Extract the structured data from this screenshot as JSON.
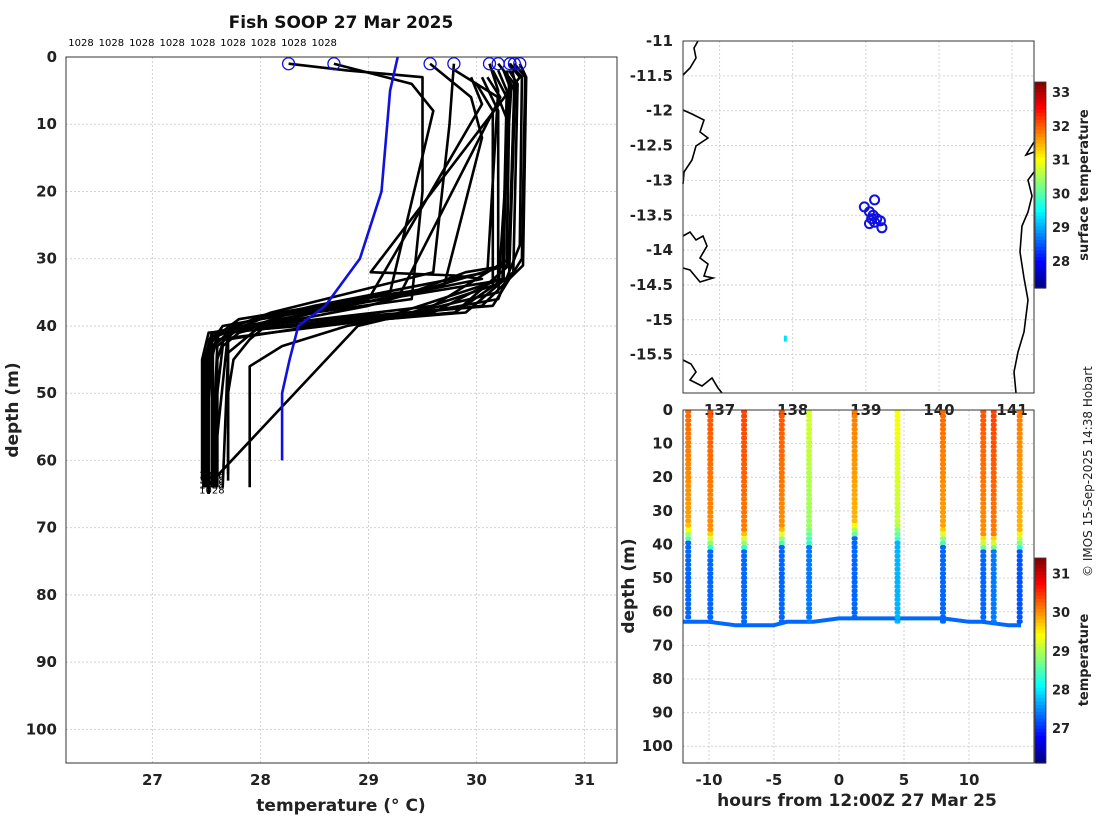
{
  "figure": {
    "title": "Fish SOOP 27 Mar 2025",
    "credit": "© IMOS 15-Sep-2025 14:38 Hobart"
  },
  "chart_data": [
    {
      "name": "temperature-profiles",
      "type": "line",
      "title": "Fish SOOP 27 Mar 2025",
      "xlabel": "temperature (° C)",
      "ylabel": "depth (m)",
      "xlim": [
        26.2,
        31.3
      ],
      "ylim": [
        105,
        0
      ],
      "xticks": [
        27,
        28,
        29,
        30,
        31
      ],
      "yticks": [
        0,
        10,
        20,
        30,
        40,
        50,
        60,
        70,
        80,
        90,
        100
      ],
      "grid": true,
      "top_labels": [
        "1028",
        "1028",
        "1028",
        "1028",
        "1028",
        "1028",
        "1028",
        "1028",
        "1028"
      ],
      "bottom_labels": [
        "1028",
        "1028",
        "1028",
        "1028"
      ],
      "climatology": {
        "name": "climatology",
        "color": "#1010e0",
        "temp": [
          29.27,
          29.2,
          29.12,
          28.92,
          28.6,
          28.35,
          28.27,
          28.2,
          28.2
        ],
        "depth": [
          0,
          5,
          20,
          30,
          37,
          40,
          45,
          50,
          60
        ]
      },
      "start_temps": [
        28.26,
        28.68,
        29.57,
        29.79,
        30.12,
        30.2,
        30.31,
        30.35,
        30.4
      ],
      "profiles": [
        {
          "temp": [
            28.26,
            28.8,
            29.5,
            29.5,
            29.4,
            28.5,
            27.8,
            27.65,
            27.6,
            27.6
          ],
          "depth": [
            1,
            2,
            3,
            20,
            36,
            38,
            41,
            43,
            50,
            64
          ]
        },
        {
          "temp": [
            28.68,
            29.4,
            29.6,
            29.2,
            28.3,
            27.75,
            27.6,
            27.58,
            27.58
          ],
          "depth": [
            1,
            4,
            8,
            35,
            38,
            41,
            43,
            50,
            64
          ]
        },
        {
          "temp": [
            29.57,
            29.95,
            30.05,
            29.7,
            28.2,
            27.9,
            27.75,
            27.7,
            27.7
          ],
          "depth": [
            1,
            6,
            12,
            34,
            38,
            42,
            45,
            50,
            63
          ]
        },
        {
          "temp": [
            29.79,
            29.75,
            29.6,
            28.1,
            27.6,
            27.55,
            27.55
          ],
          "depth": [
            1,
            10,
            32,
            38,
            41,
            45,
            64
          ]
        },
        {
          "temp": [
            30.12,
            30.2,
            30.1,
            28.5,
            27.7,
            27.6,
            27.6
          ],
          "depth": [
            1,
            5,
            32,
            37,
            40,
            45,
            64
          ]
        },
        {
          "temp": [
            30.2,
            30.35,
            30.3,
            29.6,
            28.0,
            27.7,
            27.65
          ],
          "depth": [
            1,
            4,
            30,
            37,
            40,
            44,
            64
          ]
        },
        {
          "temp": [
            30.31,
            30.42,
            30.4,
            30.2,
            28.8,
            28.2,
            27.9,
            27.9
          ],
          "depth": [
            1,
            3,
            28,
            36,
            40,
            43,
            46,
            64
          ]
        },
        {
          "temp": [
            30.35,
            30.45,
            30.42,
            30.15,
            27.8,
            27.55,
            27.55
          ],
          "depth": [
            1,
            3,
            30,
            37,
            40,
            43,
            64
          ]
        },
        {
          "temp": [
            30.4,
            30.46,
            30.43,
            30.05,
            27.7,
            27.5,
            27.5
          ],
          "depth": [
            1,
            3,
            31,
            37,
            41,
            44,
            64
          ]
        },
        {
          "temp": [
            30.3,
            30.38,
            30.34,
            29.9,
            27.6,
            27.5,
            27.5
          ],
          "depth": [
            2,
            4,
            32,
            38,
            41,
            44,
            64
          ]
        },
        {
          "temp": [
            30.15,
            30.28,
            30.25,
            29.8,
            27.55,
            27.48,
            27.48
          ],
          "depth": [
            2,
            6,
            33,
            38,
            41,
            45,
            64
          ]
        },
        {
          "temp": [
            30.05,
            30.2,
            30.2,
            29.6,
            27.52,
            27.46,
            27.46
          ],
          "depth": [
            3,
            8,
            33,
            38,
            41,
            45,
            63
          ]
        },
        {
          "temp": [
            30.25,
            30.35,
            30.3,
            29.8,
            28.5,
            27.7,
            27.7
          ],
          "depth": [
            2,
            5,
            31,
            38,
            40,
            42,
            62
          ]
        },
        {
          "temp": [
            30.0,
            30.15,
            30.15,
            29.4,
            27.58,
            27.5,
            27.5
          ],
          "depth": [
            4,
            8,
            34,
            38,
            41,
            45,
            64
          ]
        },
        {
          "temp": [
            30.2,
            30.28,
            30.24,
            29.1,
            27.6,
            27.52,
            27.52
          ],
          "depth": [
            2,
            5,
            33,
            39,
            42,
            46,
            65
          ]
        },
        {
          "temp": [
            30.1,
            30.22,
            29.3,
            27.8,
            27.55,
            27.55
          ],
          "depth": [
            3,
            6,
            35,
            39,
            42,
            64
          ]
        },
        {
          "temp": [
            30.33,
            30.36,
            30.3,
            28.0,
            27.52,
            27.5
          ],
          "depth": [
            2,
            4,
            33,
            39,
            42,
            64
          ]
        },
        {
          "temp": [
            29.95,
            30.05,
            29.0,
            27.65,
            27.52,
            27.52
          ],
          "depth": [
            3,
            7,
            36,
            40,
            43,
            65
          ]
        },
        {
          "temp": [
            30.28,
            30.3,
            30.28,
            29.9,
            29.4,
            27.62,
            27.56,
            27.56
          ],
          "depth": [
            2,
            4,
            31,
            32,
            35,
            41,
            44,
            64
          ]
        },
        {
          "temp": [
            30.25,
            30.32,
            30.2,
            28.9,
            27.5
          ],
          "depth": [
            2,
            5,
            35,
            40,
            64
          ]
        },
        {
          "temp": [
            29.8,
            30.2,
            30.3,
            30.28,
            29.0,
            27.7,
            27.55
          ],
          "depth": [
            2,
            6,
            10,
            31,
            37,
            41,
            64
          ]
        },
        {
          "temp": [
            30.3,
            30.4,
            29.02,
            29.8,
            30.05,
            27.55,
            27.48
          ],
          "depth": [
            1,
            3,
            32,
            32.5,
            33,
            41,
            64
          ]
        }
      ]
    },
    {
      "name": "location-map",
      "type": "scatter",
      "ylim": [
        -16.05,
        -11
      ],
      "yticks": [
        -11,
        -11.5,
        -12,
        -12.5,
        -13,
        -13.5,
        -14,
        -14.5,
        -15,
        -15.5
      ],
      "xticks": [
        137,
        138,
        139,
        140,
        141
      ],
      "xlim": [
        136.5,
        141.3
      ],
      "colorbar": {
        "label": "surface temperature",
        "min": 27.2,
        "max": 33.3,
        "ticks": [
          28,
          29,
          30,
          31,
          32,
          33
        ]
      },
      "points": [
        {
          "lon": 138.98,
          "lat": -13.38
        },
        {
          "lon": 139.05,
          "lat": -13.45
        },
        {
          "lon": 139.12,
          "lat": -13.28
        },
        {
          "lon": 139.1,
          "lat": -13.5
        },
        {
          "lon": 139.15,
          "lat": -13.55
        },
        {
          "lon": 139.2,
          "lat": -13.58
        },
        {
          "lon": 139.08,
          "lat": -13.55
        },
        {
          "lon": 139.05,
          "lat": -13.62
        },
        {
          "lon": 139.12,
          "lat": -13.6
        },
        {
          "lon": 139.22,
          "lat": -13.68
        }
      ],
      "marker": {
        "lon": 137.9,
        "lat": -15.27,
        "value": 29.3
      }
    },
    {
      "name": "depth-time-section",
      "type": "scatter",
      "xlabel": "hours from 12:00Z 27 Mar 25",
      "ylabel": "depth (m)",
      "xlim": [
        -12,
        15
      ],
      "ylim": [
        105,
        0
      ],
      "xticks": [
        -10,
        -5,
        0,
        5,
        10
      ],
      "yticks": [
        0,
        10,
        20,
        30,
        40,
        50,
        60,
        70,
        80,
        90,
        100
      ],
      "colorbar": {
        "label": "temperature",
        "min": 26.1,
        "max": 31.4,
        "ticks": [
          27,
          28,
          29,
          30,
          31
        ]
      },
      "casts": [
        {
          "hour": -11.6,
          "bottom": 62,
          "thermocline": 38,
          "surf": 30.2,
          "deep": 27.3
        },
        {
          "hour": -9.9,
          "bottom": 63,
          "thermocline": 40,
          "surf": 30.3,
          "deep": 27.3
        },
        {
          "hour": -7.3,
          "bottom": 64,
          "thermocline": 40,
          "surf": 30.4,
          "deep": 27.3
        },
        {
          "hour": -4.4,
          "bottom": 63,
          "thermocline": 39,
          "surf": 30.3,
          "deep": 27.3
        },
        {
          "hour": -2.3,
          "bottom": 63,
          "thermocline": 39,
          "surf": 29.2,
          "deep": 27.4
        },
        {
          "hour": 1.2,
          "bottom": 62,
          "thermocline": 37,
          "surf": 30.1,
          "deep": 27.3
        },
        {
          "hour": 4.5,
          "bottom": 63,
          "thermocline": 38,
          "surf": 29.4,
          "deep": 27.7
        },
        {
          "hour": 8.0,
          "bottom": 63,
          "thermocline": 39,
          "surf": 30.2,
          "deep": 27.3
        },
        {
          "hour": 11.1,
          "bottom": 63,
          "thermocline": 41,
          "surf": 30.3,
          "deep": 27.3
        },
        {
          "hour": 11.9,
          "bottom": 63,
          "thermocline": 41,
          "surf": 30.4,
          "deep": 27.4
        },
        {
          "hour": 13.9,
          "bottom": 64,
          "thermocline": 40,
          "surf": 30.1,
          "deep": 27.2
        }
      ],
      "bottom_track": [
        [
          -12,
          63
        ],
        [
          -11,
          63
        ],
        [
          -10,
          63
        ],
        [
          -8,
          64
        ],
        [
          -7,
          64
        ],
        [
          -5,
          64
        ],
        [
          -4,
          63
        ],
        [
          -2,
          63
        ],
        [
          0,
          62
        ],
        [
          1,
          62
        ],
        [
          3,
          62
        ],
        [
          4,
          62
        ],
        [
          6,
          62
        ],
        [
          8,
          62
        ],
        [
          10,
          63
        ],
        [
          11,
          63
        ],
        [
          13,
          64
        ],
        [
          14,
          64
        ]
      ]
    }
  ]
}
